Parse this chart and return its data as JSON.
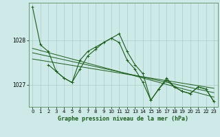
{
  "background_color": "#ceeae8",
  "grid_color": "#aaccc8",
  "line_color": "#1a5c1a",
  "xlabel": "Graphe pression niveau de la mer (hPa)",
  "yticks": [
    1027,
    1028
  ],
  "xlim": [
    -0.5,
    23.5
  ],
  "ylim": [
    1026.5,
    1028.85
  ],
  "series1_x": [
    0,
    1,
    2,
    3,
    4,
    5,
    6,
    7,
    8,
    9,
    10,
    11,
    12,
    13,
    14,
    15,
    16,
    17,
    18,
    19,
    20,
    21,
    22,
    23
  ],
  "series1_y": [
    1028.75,
    1027.9,
    1027.75,
    1027.3,
    1027.15,
    1027.05,
    1027.55,
    1027.75,
    1027.85,
    1027.95,
    1028.05,
    1028.15,
    1027.75,
    1027.45,
    1027.25,
    1026.65,
    1026.9,
    1027.1,
    1026.95,
    1026.85,
    1026.8,
    1026.95,
    1026.9,
    1026.62
  ],
  "series2_x": [
    2,
    3,
    4,
    5,
    6,
    7,
    8,
    9,
    10,
    11,
    12,
    13,
    14,
    15,
    16,
    17,
    18,
    19,
    20,
    21,
    22,
    23
  ],
  "series2_y": [
    1027.45,
    1027.3,
    1027.15,
    1027.05,
    1027.35,
    1027.65,
    1027.8,
    1027.95,
    1028.05,
    1027.95,
    1027.55,
    1027.35,
    1027.05,
    1026.65,
    1026.9,
    1027.15,
    1026.95,
    1026.85,
    1026.8,
    1026.95,
    1026.9,
    1026.62
  ],
  "trend1_x": [
    0,
    23
  ],
  "trend1_y": [
    1027.82,
    1026.72
  ],
  "trend2_x": [
    0,
    23
  ],
  "trend2_y": [
    1027.72,
    1026.82
  ],
  "trend3_x": [
    0,
    23
  ],
  "trend3_y": [
    1027.58,
    1026.92
  ],
  "xticks": [
    0,
    1,
    2,
    3,
    4,
    5,
    6,
    7,
    8,
    9,
    10,
    11,
    12,
    13,
    14,
    15,
    16,
    17,
    18,
    19,
    20,
    21,
    22,
    23
  ]
}
